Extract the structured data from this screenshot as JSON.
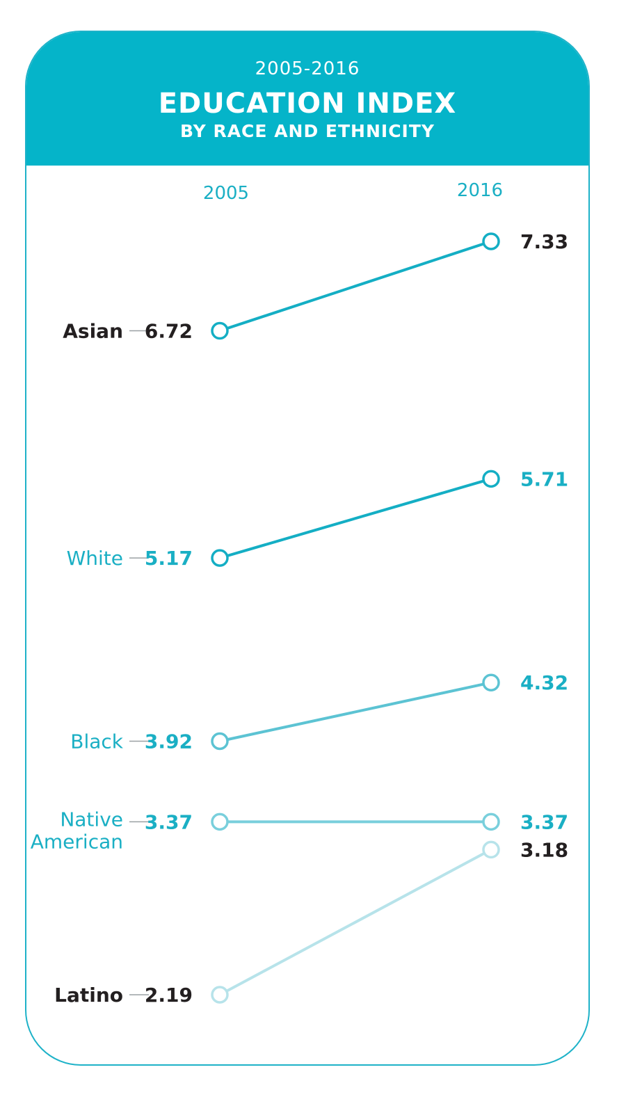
{
  "header": {
    "years_range": "2005-2016",
    "title": "EDUCATION INDEX",
    "subtitle": "BY RACE AND ETHNICITY"
  },
  "colors": {
    "header_bg": "#05b4c9",
    "primary": "#1aafc4",
    "dark_text": "#231f20"
  },
  "chart_data": {
    "type": "line",
    "x": [
      "2005",
      "2016"
    ],
    "series": [
      {
        "name": "Asian",
        "values": [
          6.72,
          7.33
        ],
        "label_color": "#231f20",
        "line_color": "#14aec4"
      },
      {
        "name": "White",
        "values": [
          5.17,
          5.71
        ],
        "label_color": "#1aafc4",
        "line_color": "#14aec4"
      },
      {
        "name": "Black",
        "values": [
          3.92,
          4.32
        ],
        "label_color": "#1aafc4",
        "line_color": "#5cc3d3"
      },
      {
        "name": "Native American",
        "values": [
          3.37,
          3.37
        ],
        "label_color": "#1aafc4",
        "line_color": "#79cfdc"
      },
      {
        "name": "Latino",
        "values": [
          2.19,
          3.18
        ],
        "label_color": "#231f20",
        "line_color": "#b7e3ea"
      }
    ]
  }
}
